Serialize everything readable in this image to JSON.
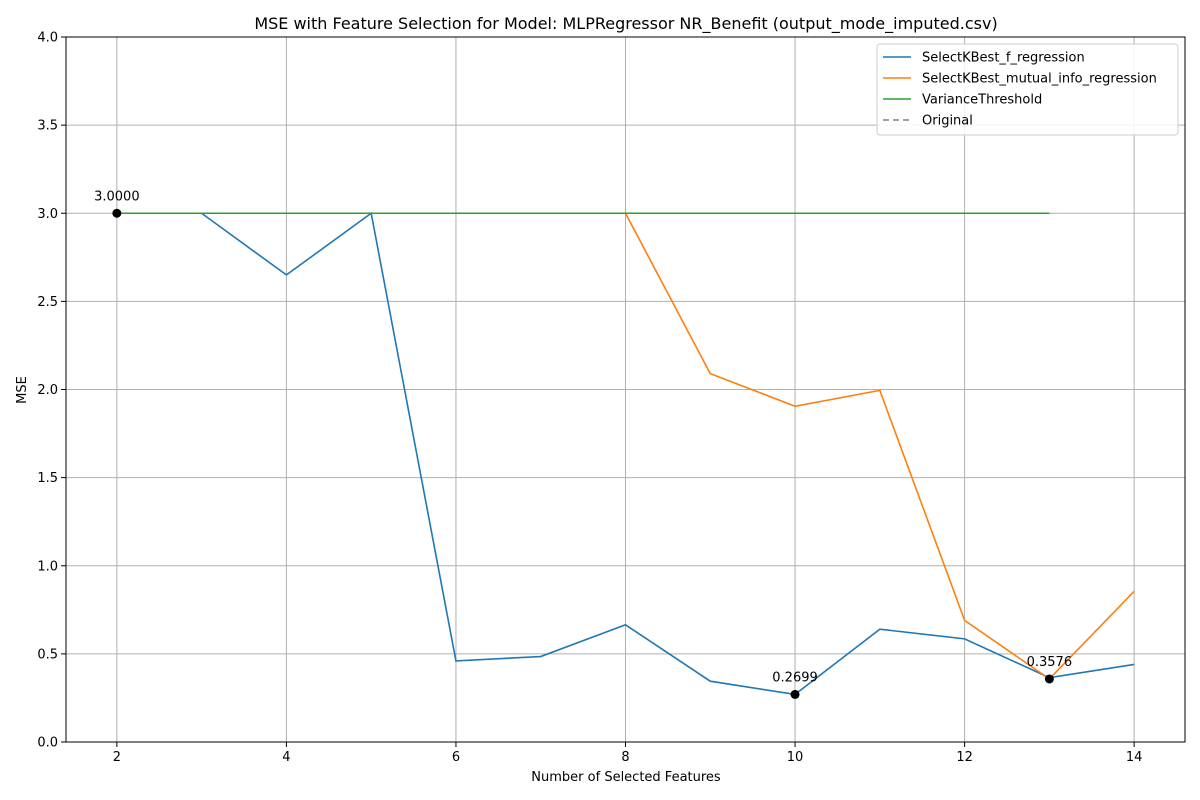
{
  "chart_data": {
    "type": "line",
    "title": "MSE with Feature Selection for Model: MLPRegressor NR_Benefit (output_mode_imputed.csv)",
    "xlabel": "Number of Selected Features",
    "ylabel": "MSE",
    "xlim": [
      1.4,
      14.6
    ],
    "ylim": [
      0,
      4
    ],
    "xticks": [
      2,
      4,
      6,
      8,
      10,
      12,
      14
    ],
    "yticks": [
      0.0,
      0.5,
      1.0,
      1.5,
      2.0,
      2.5,
      3.0,
      3.5,
      4.0
    ],
    "xtick_labels": [
      "2",
      "4",
      "6",
      "8",
      "10",
      "12",
      "14"
    ],
    "ytick_labels": [
      "0.0",
      "0.5",
      "1.0",
      "1.5",
      "2.0",
      "2.5",
      "3.0",
      "3.5",
      "4.0"
    ],
    "grid": true,
    "legend_position": "top-right",
    "series": [
      {
        "name": "SelectKBest_f_regression",
        "color": "#1f77b4",
        "dash": "solid",
        "x": [
          2,
          3,
          4,
          5,
          6,
          7,
          8,
          9,
          10,
          11,
          12,
          13,
          14
        ],
        "y": [
          3.0,
          3.0,
          2.65,
          3.0,
          0.46,
          0.485,
          0.665,
          0.345,
          0.2699,
          0.64,
          0.585,
          0.365,
          0.44
        ]
      },
      {
        "name": "SelectKBest_mutual_info_regression",
        "color": "#ff7f0e",
        "dash": "solid",
        "x": [
          2,
          3,
          4,
          5,
          6,
          7,
          8,
          9,
          10,
          11,
          12,
          13,
          14
        ],
        "y": [
          3.0,
          3.0,
          3.0,
          3.0,
          3.0,
          3.0,
          3.0,
          2.09,
          1.905,
          1.995,
          0.69,
          0.3576,
          0.855
        ]
      },
      {
        "name": "VarianceThreshold",
        "color": "#2ca02c",
        "dash": "solid",
        "x": [
          2,
          3,
          4,
          5,
          6,
          7,
          8,
          9,
          10,
          11,
          12,
          13
        ],
        "y": [
          3.0,
          3.0,
          3.0,
          3.0,
          3.0,
          3.0,
          3.0,
          3.0,
          3.0,
          3.0,
          3.0,
          3.0
        ]
      },
      {
        "name": "Original",
        "color": "#808080",
        "dash": "dashed",
        "x": [],
        "y": []
      }
    ],
    "annotations": [
      {
        "x": 2,
        "y": 3.0,
        "label": "3.0000"
      },
      {
        "x": 10,
        "y": 0.2699,
        "label": "0.2699"
      },
      {
        "x": 13,
        "y": 0.3576,
        "label": "0.3576"
      }
    ]
  }
}
